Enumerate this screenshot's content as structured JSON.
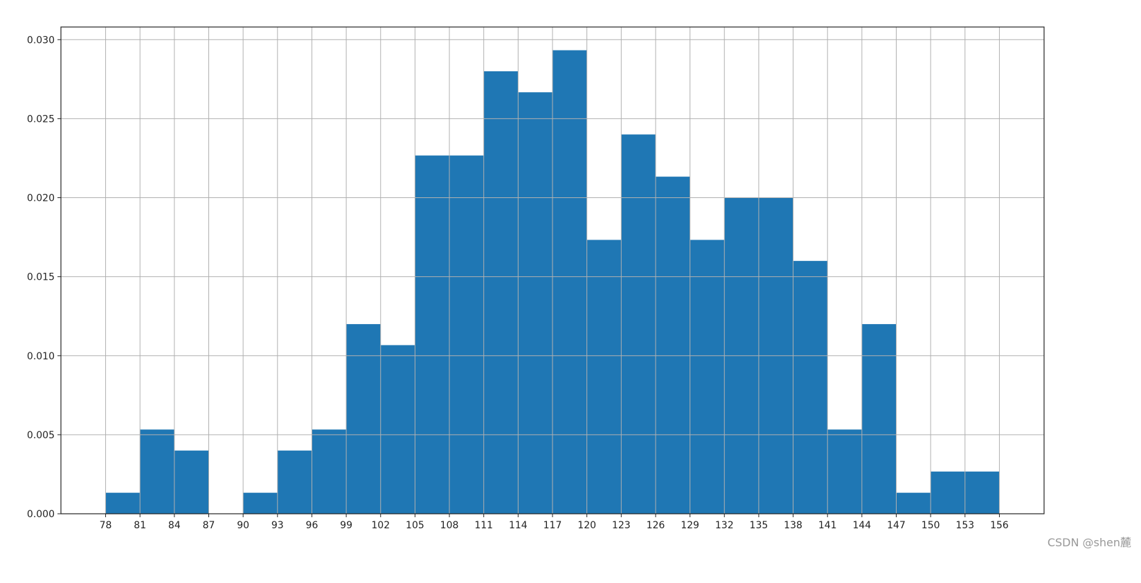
{
  "chart_data": {
    "type": "bar",
    "subtype": "histogram",
    "bin_edges": [
      78,
      81,
      84,
      87,
      90,
      93,
      96,
      99,
      102,
      105,
      108,
      111,
      114,
      117,
      120,
      123,
      126,
      129,
      132,
      135,
      138,
      141,
      144,
      147,
      150,
      153,
      156
    ],
    "values": [
      0.00133,
      0.00533,
      0.004,
      0,
      0.00133,
      0.004,
      0.00533,
      0.012,
      0.01067,
      0.02267,
      0.02267,
      0.028,
      0.02667,
      0.02933,
      0.01733,
      0.024,
      0.02133,
      0.01733,
      0.02,
      0.02,
      0.016,
      0.00533,
      0.012,
      0.00133,
      0.00267,
      0.00267
    ],
    "xticks": [
      "78",
      "81",
      "84",
      "87",
      "90",
      "93",
      "96",
      "99",
      "102",
      "105",
      "108",
      "111",
      "114",
      "117",
      "120",
      "123",
      "126",
      "129",
      "132",
      "135",
      "138",
      "141",
      "144",
      "147",
      "150",
      "153",
      "156"
    ],
    "yticks": [
      "0.000",
      "0.005",
      "0.010",
      "0.015",
      "0.020",
      "0.025",
      "0.030"
    ],
    "xlim": [
      74.1,
      159.9
    ],
    "ylim": [
      0,
      0.0308
    ],
    "grid": true,
    "bar_color": "#1f77b4",
    "grid_color": "#b0b0b0",
    "title": "",
    "xlabel": "",
    "ylabel": ""
  },
  "watermark": "CSDN @shen麓"
}
